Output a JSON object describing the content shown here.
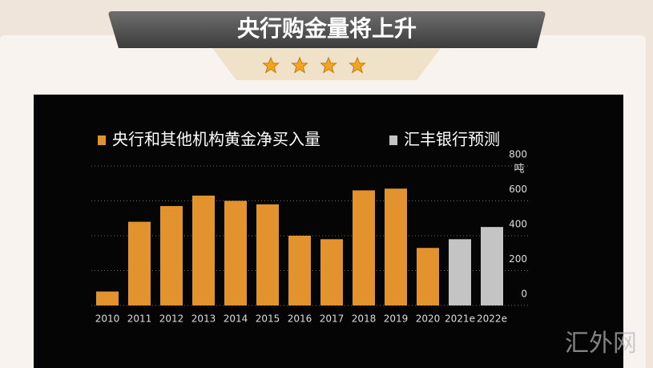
{
  "header": {
    "title": "央行购金量将上升"
  },
  "chart_data": {
    "type": "bar",
    "categories": [
      "2010",
      "2011",
      "2012",
      "2013",
      "2014",
      "2015",
      "2016",
      "2017",
      "2018",
      "2019",
      "2020",
      "2021e",
      "2022e"
    ],
    "series": [
      {
        "name": "央行和其他机构黄金净买入量",
        "color": "#e3932e",
        "values": [
          80,
          480,
          570,
          630,
          600,
          580,
          400,
          380,
          660,
          670,
          330,
          null,
          null
        ]
      },
      {
        "name": "汇丰银行预测",
        "color": "#c4c4c4",
        "values": [
          null,
          null,
          null,
          null,
          null,
          null,
          null,
          null,
          null,
          null,
          null,
          380,
          450
        ]
      }
    ],
    "ylabel": "吨",
    "ylim": [
      0,
      800
    ],
    "yticks": [
      0,
      200,
      400,
      600,
      800
    ],
    "grid": true
  },
  "watermark": "汇外网"
}
